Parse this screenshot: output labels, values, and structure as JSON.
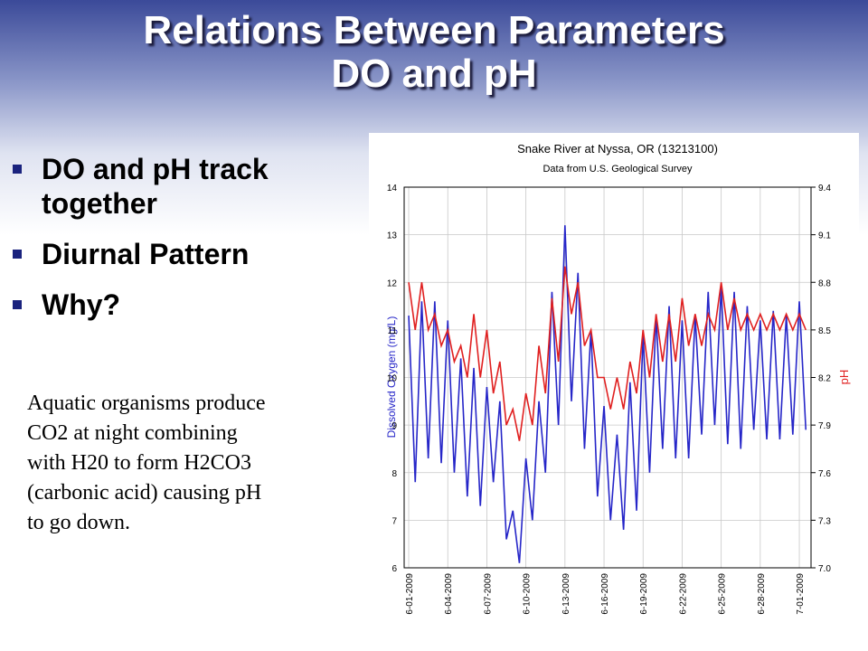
{
  "slide": {
    "title_lines": [
      "Relations Between Parameters",
      "DO and pH"
    ],
    "bullets": [
      "DO and pH track together",
      "Diurnal Pattern",
      "Why?"
    ],
    "note_lines": [
      "Aquatic organisms produce",
      "CO2 at night combining",
      "with H20 to form H2CO3",
      "(carbonic acid) causing pH",
      "to go down."
    ]
  },
  "chart_data": {
    "type": "line",
    "title": "Snake River at Nyssa, OR (13213100)",
    "subtitle": "Data from U.S. Geological Survey",
    "y_label": "Dissolved Oxygen (mg/L)",
    "y2_label": "pH",
    "grid": true,
    "xlim": [
      -0.35,
      30.9
    ],
    "ylim": [
      6,
      14
    ],
    "y2lim": [
      7.0,
      9.4
    ],
    "yticks": [
      6,
      7,
      8,
      9,
      10,
      11,
      12,
      13,
      14
    ],
    "y2ticks": [
      {
        "value": 7.0,
        "label": "7.0"
      },
      7.3,
      7.6,
      7.9,
      8.2,
      8.5,
      8.8,
      9.1,
      9.4
    ],
    "xticks": [
      {
        "value": 0,
        "label": "6-01-2009"
      },
      {
        "value": 3,
        "label": "6-04-2009"
      },
      {
        "value": 6,
        "label": "6-07-2009"
      },
      {
        "value": 9,
        "label": "6-10-2009"
      },
      {
        "value": 12,
        "label": "6-13-2009"
      },
      {
        "value": 15,
        "label": "6-16-2009"
      },
      {
        "value": 18,
        "label": "6-19-2009"
      },
      {
        "value": 21,
        "label": "6-22-2009"
      },
      {
        "value": 24,
        "label": "6-25-2009"
      },
      {
        "value": 27,
        "label": "6-28-2009"
      },
      {
        "value": 30,
        "label": "7-01-2009"
      }
    ],
    "x": [
      0,
      0.5,
      1,
      1.5,
      2,
      2.5,
      3,
      3.5,
      4,
      4.5,
      5,
      5.5,
      6,
      6.5,
      7,
      7.5,
      8,
      8.5,
      9,
      9.5,
      10,
      10.5,
      11,
      11.5,
      12,
      12.5,
      13,
      13.5,
      14,
      14.5,
      15,
      15.5,
      16,
      16.5,
      17,
      17.5,
      18,
      18.5,
      19,
      19.5,
      20,
      20.5,
      21,
      21.5,
      22,
      22.5,
      23,
      23.5,
      24,
      24.5,
      25,
      25.5,
      26,
      26.5,
      27,
      27.5,
      28,
      28.5,
      29,
      29.5,
      30,
      30.5
    ],
    "series": [
      {
        "name": "Dissolved Oxygen",
        "color": "#2626c8",
        "axis": "y",
        "values": [
          11.3,
          7.8,
          11.6,
          8.3,
          11.6,
          8.2,
          11.2,
          8.0,
          10.4,
          7.5,
          10.2,
          7.3,
          9.8,
          7.8,
          9.5,
          6.6,
          7.2,
          6.1,
          8.3,
          7.0,
          9.5,
          8.0,
          11.8,
          9.0,
          13.2,
          9.5,
          12.2,
          8.5,
          11.0,
          7.5,
          9.4,
          7.0,
          8.8,
          6.8,
          9.9,
          7.2,
          10.9,
          8.0,
          11.3,
          8.5,
          11.5,
          8.3,
          11.2,
          8.3,
          11.3,
          8.8,
          11.8,
          9.0,
          11.9,
          8.6,
          11.8,
          8.5,
          11.5,
          8.9,
          11.2,
          8.7,
          11.4,
          8.7,
          11.3,
          8.8,
          11.6,
          8.9
        ]
      },
      {
        "name": "pH",
        "color": "#e02020",
        "axis": "y2",
        "values": [
          8.8,
          8.5,
          8.8,
          8.5,
          8.6,
          8.4,
          8.5,
          8.3,
          8.4,
          8.2,
          8.6,
          8.2,
          8.5,
          8.1,
          8.3,
          7.9,
          8.0,
          7.8,
          8.1,
          7.9,
          8.4,
          8.1,
          8.7,
          8.3,
          8.9,
          8.6,
          8.8,
          8.4,
          8.5,
          8.2,
          8.2,
          8.0,
          8.2,
          8.0,
          8.3,
          8.1,
          8.5,
          8.2,
          8.6,
          8.3,
          8.6,
          8.3,
          8.7,
          8.4,
          8.6,
          8.4,
          8.6,
          8.5,
          8.8,
          8.5,
          8.7,
          8.5,
          8.6,
          8.5,
          8.6,
          8.5,
          8.6,
          8.5,
          8.6,
          8.5,
          8.6,
          8.5
        ]
      }
    ]
  }
}
